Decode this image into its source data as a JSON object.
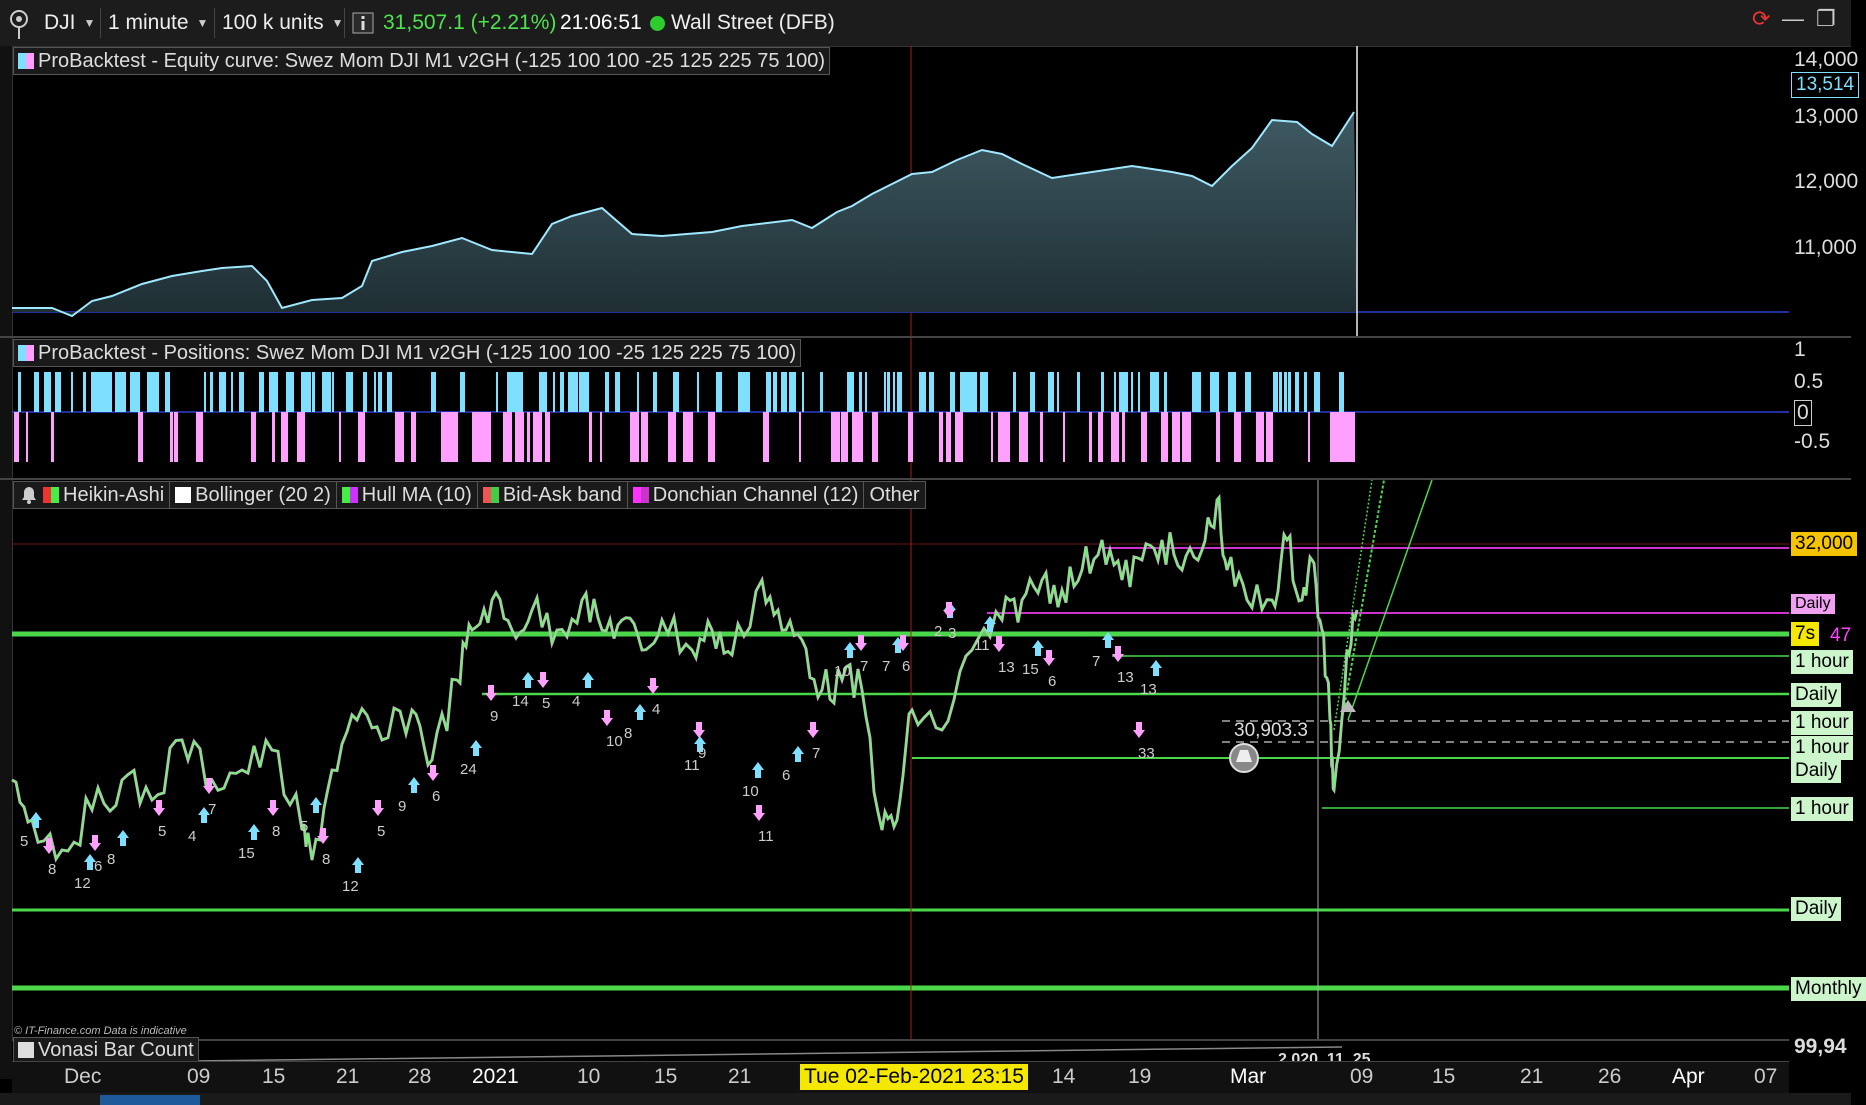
{
  "toolbar": {
    "symbol": "DJI",
    "timeframe": "1 minute",
    "units": "100 k units",
    "last_price": "31,507.1 (+2.21%)",
    "clock": "21:06:51",
    "market": "Wall Street (DFB)"
  },
  "panels": {
    "equity_title": "ProBacktest - Equity curve: Swez Mom DJI M1 v2GH (-125 100 100 -25 125 225 75 100)",
    "positions_title": "ProBacktest - Positions: Swez Mom DJI M1 v2GH (-125 100 100 -25 125 225 75 100)",
    "price_indicators": [
      "Heikin-Ashi",
      "Bollinger (20 2)",
      "Hull MA (10)",
      "Bid-Ask band",
      "Donchian Channel (12)",
      "Other"
    ],
    "vonasi_title": "Vonasi Bar Count",
    "vonasi_value": "2,020, 11, 25",
    "watermark": "© IT-Finance.com Data is indicative"
  },
  "equity_axis": [
    "14,000",
    "13,000",
    "12,000",
    "11,000"
  ],
  "equity_last": "13,514",
  "positions_axis": [
    "1",
    "0.5",
    "0",
    "-0.5"
  ],
  "price_axis": {
    "tags": [
      "32,000",
      "Daily",
      "7s",
      "47",
      "1 hour",
      "Daily",
      "1 hour",
      "1 hour",
      "Daily",
      "1 hour",
      "Daily",
      "Monthly"
    ],
    "vonasi_last": "99,94"
  },
  "price_annotation": "30,903.3",
  "bar_counts": [
    "5",
    "8",
    "12",
    "6",
    "8",
    "5",
    "4",
    "7",
    "15",
    "8",
    "5",
    "8",
    "12",
    "5",
    "9",
    "6",
    "24",
    "9",
    "14",
    "5",
    "4",
    "10",
    "8",
    "4",
    "11",
    "9",
    "10",
    "11",
    "6",
    "7",
    "10",
    "7",
    "7",
    "6",
    "2",
    "3",
    "11",
    "13",
    "15",
    "6",
    "7",
    "13",
    "13",
    "33"
  ],
  "xaxis": {
    "labels": [
      "Dec",
      "09",
      "15",
      "21",
      "28",
      "2021",
      "10",
      "15",
      "21",
      "14",
      "19",
      "Mar",
      "09",
      "15",
      "21",
      "26",
      "Apr",
      "07"
    ],
    "cursor_date": "Tue 02-Feb-2021 23:15"
  },
  "colors": {
    "heikin_up": "#7ee87e",
    "heikin_down": "#ff44ff",
    "long": "#7fdfff",
    "short": "#ffa0ff",
    "support_line": "#55e655",
    "donchian": "#cc33cc"
  }
}
